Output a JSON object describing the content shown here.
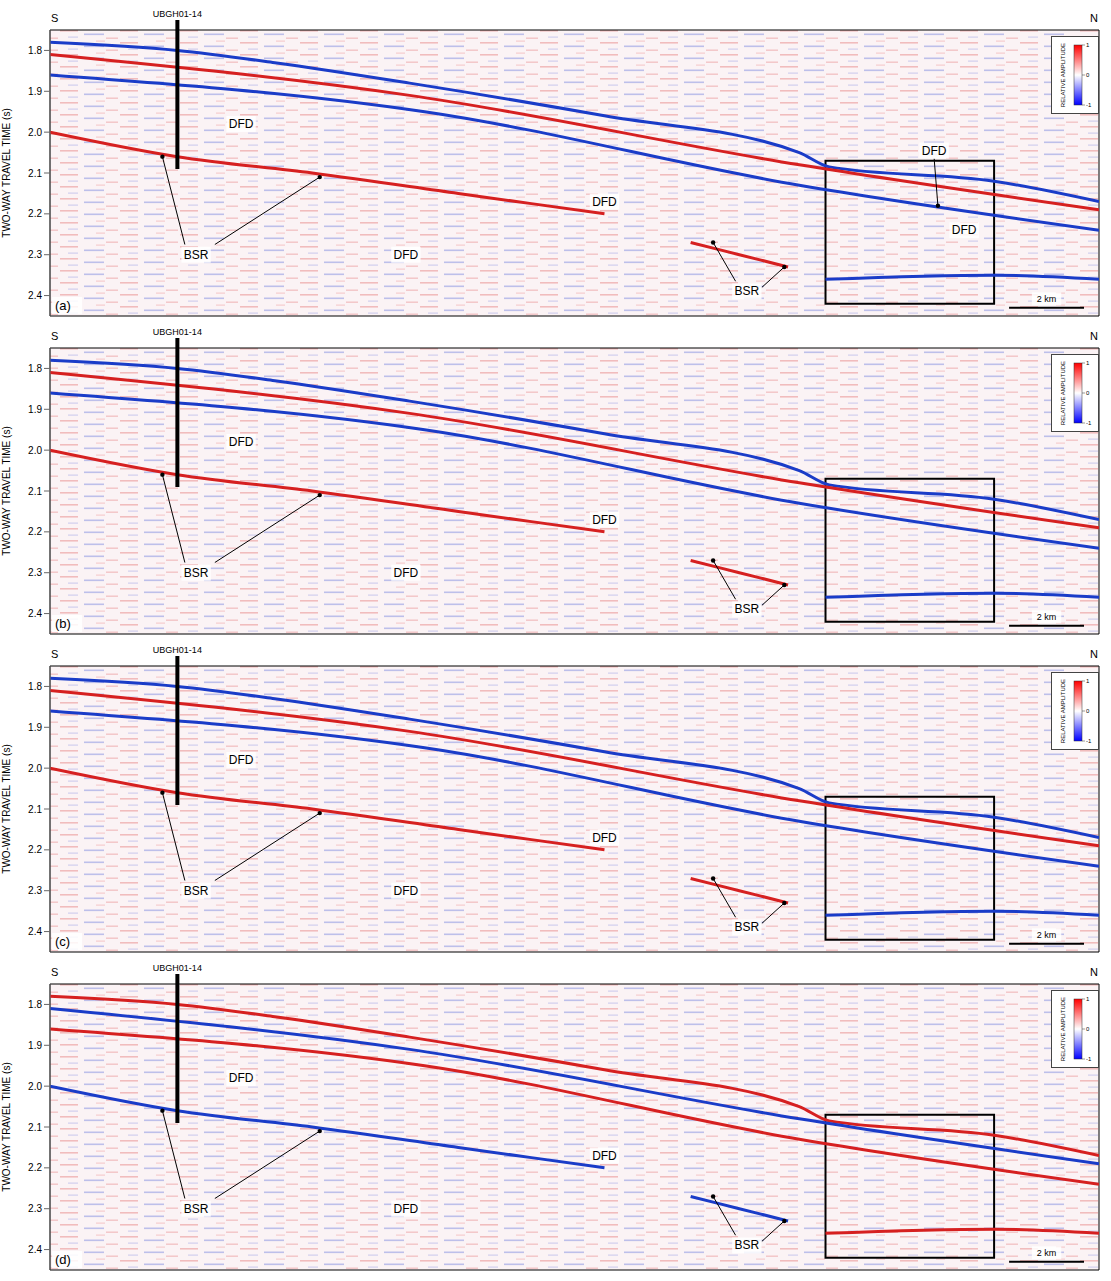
{
  "chart_data": [
    {
      "type": "line",
      "label": "(a)",
      "left_label": "S",
      "right_label": "N",
      "ylabel": "TWO-WAY TRAVEL TIME (s)",
      "xlim": [
        0,
        28
      ],
      "ylim": [
        1.75,
        2.45
      ],
      "yticks": [
        1.8,
        1.9,
        {
          "value": 2,
          "label": "2.0"
        },
        2.1,
        2.2,
        2.3,
        2.4
      ],
      "tick_labels": "y",
      "series": [
        {
          "color": "#1a3cc8",
          "x": [
            0,
            3.4,
            6,
            9.6,
            14.8,
            20,
            20.8,
            25.2,
            28
          ],
          "values": [
            1.78,
            1.8,
            1.83,
            1.88,
            1.96,
            2.05,
            2.085,
            2.12,
            2.17
          ]
        },
        {
          "color": "#d62020",
          "x": [
            0,
            9.6,
            20,
            28
          ],
          "values": [
            1.81,
            1.91,
            2.08,
            2.19
          ]
        },
        {
          "color": "#1a3cc8",
          "x": [
            0,
            10,
            20,
            28
          ],
          "values": [
            1.86,
            1.95,
            2.13,
            2.24
          ]
        },
        {
          "color": "#d62020",
          "x": [
            0,
            3.4,
            7,
            10.9,
            14.8
          ],
          "values": [
            2.0,
            2.06,
            2.1,
            2.15,
            2.2
          ]
        },
        {
          "color": "#d62020",
          "x": [
            17.1,
            18.4,
            19.7
          ],
          "values": [
            2.27,
            2.3,
            2.33
          ]
        },
        {
          "color": "#1a3cc8",
          "x": [
            20.7,
            25.2,
            28
          ],
          "values": [
            2.36,
            2.35,
            2.36
          ]
        }
      ],
      "well": {
        "label": "UBGH01-14",
        "x": 3.4,
        "y": [
          1.75,
          2.09
        ]
      },
      "annotations": [
        {
          "text": "DFD",
          "x": 5.1,
          "y": 1.98
        },
        {
          "text": "DFD",
          "x": 14.8,
          "y": 2.17
        },
        {
          "text": "DFD",
          "x": 9.5,
          "y": 2.3
        },
        {
          "text": "DFD",
          "x": 23.6,
          "y": 2.045
        },
        {
          "text": "DFD",
          "x": 24.4,
          "y": 2.24
        },
        {
          "text": "BSR",
          "x": 3.9,
          "y": 2.3
        },
        {
          "text": "BSR",
          "x": 18.6,
          "y": 2.39
        }
      ],
      "arrows": [
        {
          "from": [
            3.6,
            2.275
          ],
          "to": [
            3.0,
            2.06
          ]
        },
        {
          "from": [
            4.4,
            2.275
          ],
          "to": [
            7.2,
            2.11
          ]
        },
        {
          "from": [
            18.3,
            2.365
          ],
          "to": [
            17.7,
            2.27
          ]
        },
        {
          "from": [
            19.0,
            2.38
          ],
          "to": [
            19.6,
            2.33
          ]
        },
        {
          "from": [
            23.6,
            2.065
          ],
          "to": [
            23.7,
            2.18
          ]
        }
      ],
      "box": {
        "x": [
          20.7,
          25.2
        ],
        "y": [
          2.07,
          2.42
        ]
      },
      "scale_bar": {
        "label": "2 km",
        "length": 2,
        "x": 25.6,
        "y": 2.43
      },
      "colorbar": {
        "label": "RELATIVE AMPLITUDE",
        "range": [
          -1,
          1
        ],
        "ticks": [
          1,
          0,
          -1
        ],
        "colors": [
          "#0000ff",
          "#ffffff",
          "#ff0000"
        ]
      }
    },
    {
      "type": "line",
      "label": "(b)",
      "left_label": "S",
      "right_label": "N",
      "ylabel": "TWO-WAY TRAVEL TIME (s)",
      "xlim": [
        0,
        28
      ],
      "ylim": [
        1.75,
        2.45
      ],
      "yticks": [
        1.8,
        1.9,
        {
          "value": 2,
          "label": "2.0"
        },
        2.1,
        2.2,
        2.3,
        2.4
      ],
      "tick_labels": "y",
      "series": [
        {
          "color": "#1a3cc8",
          "x": [
            0,
            3.4,
            6,
            9.6,
            14.8,
            20,
            20.8,
            25.2,
            28
          ],
          "values": [
            1.78,
            1.8,
            1.83,
            1.88,
            1.96,
            2.05,
            2.085,
            2.12,
            2.17
          ]
        },
        {
          "color": "#d62020",
          "x": [
            0,
            9.6,
            20,
            28
          ],
          "values": [
            1.81,
            1.91,
            2.08,
            2.19
          ]
        },
        {
          "color": "#1a3cc8",
          "x": [
            0,
            10,
            20,
            28
          ],
          "values": [
            1.86,
            1.95,
            2.13,
            2.24
          ]
        },
        {
          "color": "#d62020",
          "x": [
            0,
            3.4,
            7,
            10.9,
            14.8
          ],
          "values": [
            2.0,
            2.06,
            2.1,
            2.15,
            2.2
          ]
        },
        {
          "color": "#d62020",
          "x": [
            17.1,
            18.4,
            19.7
          ],
          "values": [
            2.27,
            2.3,
            2.33
          ]
        },
        {
          "color": "#1a3cc8",
          "x": [
            20.7,
            25.2,
            28
          ],
          "values": [
            2.36,
            2.35,
            2.36
          ]
        }
      ],
      "well": {
        "label": "UBGH01-14",
        "x": 3.4,
        "y": [
          1.75,
          2.09
        ]
      },
      "annotations": [
        {
          "text": "DFD",
          "x": 5.1,
          "y": 1.98
        },
        {
          "text": "DFD",
          "x": 14.8,
          "y": 2.17
        },
        {
          "text": "DFD",
          "x": 9.5,
          "y": 2.3
        },
        {
          "text": "BSR",
          "x": 3.9,
          "y": 2.3
        },
        {
          "text": "BSR",
          "x": 18.6,
          "y": 2.39
        }
      ],
      "arrows": [
        {
          "from": [
            3.6,
            2.275
          ],
          "to": [
            3.0,
            2.06
          ]
        },
        {
          "from": [
            4.4,
            2.275
          ],
          "to": [
            7.2,
            2.11
          ]
        },
        {
          "from": [
            18.3,
            2.365
          ],
          "to": [
            17.7,
            2.27
          ]
        },
        {
          "from": [
            19.0,
            2.38
          ],
          "to": [
            19.6,
            2.33
          ]
        }
      ],
      "box": {
        "x": [
          20.7,
          25.2
        ],
        "y": [
          2.07,
          2.42
        ]
      },
      "scale_bar": {
        "label": "2 km",
        "length": 2,
        "x": 25.6,
        "y": 2.43
      },
      "colorbar": {
        "label": "RELATIVE AMPLITUDE",
        "range": [
          -1,
          1
        ],
        "ticks": [
          1,
          0,
          -1
        ],
        "colors": [
          "#0000ff",
          "#ffffff",
          "#ff0000"
        ]
      }
    },
    {
      "type": "line",
      "label": "(c)",
      "left_label": "S",
      "right_label": "N",
      "ylabel": "TWO-WAY TRAVEL TIME (s)",
      "xlim": [
        0,
        28
      ],
      "ylim": [
        1.75,
        2.45
      ],
      "yticks": [
        1.8,
        1.9,
        {
          "value": 2,
          "label": "2.0"
        },
        2.1,
        2.2,
        2.3,
        2.4
      ],
      "tick_labels": "y",
      "series": [
        {
          "color": "#1a3cc8",
          "x": [
            0,
            3.4,
            6,
            9.6,
            14.8,
            20,
            20.8,
            25.2,
            28
          ],
          "values": [
            1.78,
            1.8,
            1.83,
            1.88,
            1.96,
            2.05,
            2.085,
            2.12,
            2.17
          ]
        },
        {
          "color": "#d62020",
          "x": [
            0,
            9.6,
            20,
            28
          ],
          "values": [
            1.81,
            1.91,
            2.08,
            2.19
          ]
        },
        {
          "color": "#1a3cc8",
          "x": [
            0,
            10,
            20,
            28
          ],
          "values": [
            1.86,
            1.95,
            2.13,
            2.24
          ]
        },
        {
          "color": "#d62020",
          "x": [
            0,
            3.4,
            7,
            10.9,
            14.8
          ],
          "values": [
            2.0,
            2.06,
            2.1,
            2.15,
            2.2
          ]
        },
        {
          "color": "#d62020",
          "x": [
            17.1,
            18.4,
            19.7
          ],
          "values": [
            2.27,
            2.3,
            2.33
          ]
        },
        {
          "color": "#1a3cc8",
          "x": [
            20.7,
            25.2,
            28
          ],
          "values": [
            2.36,
            2.35,
            2.36
          ]
        }
      ],
      "well": {
        "label": "UBGH01-14",
        "x": 3.4,
        "y": [
          1.75,
          2.09
        ]
      },
      "annotations": [
        {
          "text": "DFD",
          "x": 5.1,
          "y": 1.98
        },
        {
          "text": "DFD",
          "x": 14.8,
          "y": 2.17
        },
        {
          "text": "DFD",
          "x": 9.5,
          "y": 2.3
        },
        {
          "text": "BSR",
          "x": 3.9,
          "y": 2.3
        },
        {
          "text": "BSR",
          "x": 18.6,
          "y": 2.39
        }
      ],
      "arrows": [
        {
          "from": [
            3.6,
            2.275
          ],
          "to": [
            3.0,
            2.06
          ]
        },
        {
          "from": [
            4.4,
            2.275
          ],
          "to": [
            7.2,
            2.11
          ]
        },
        {
          "from": [
            18.3,
            2.365
          ],
          "to": [
            17.7,
            2.27
          ]
        },
        {
          "from": [
            19.0,
            2.38
          ],
          "to": [
            19.6,
            2.33
          ]
        }
      ],
      "box": {
        "x": [
          20.7,
          25.2
        ],
        "y": [
          2.07,
          2.42
        ]
      },
      "scale_bar": {
        "label": "2 km",
        "length": 2,
        "x": 25.6,
        "y": 2.43
      },
      "colorbar": {
        "label": "RELATIVE AMPLITUDE",
        "range": [
          -1,
          1
        ],
        "ticks": [
          1,
          0,
          -1
        ],
        "colors": [
          "#0000ff",
          "#ffffff",
          "#ff0000"
        ]
      }
    },
    {
      "type": "line",
      "label": "(d)",
      "left_label": "S",
      "right_label": "N",
      "ylabel": "TWO-WAY TRAVEL TIME (s)",
      "xlim": [
        0,
        28
      ],
      "ylim": [
        1.75,
        2.45
      ],
      "yticks": [
        1.8,
        1.9,
        {
          "value": 2,
          "label": "2.0"
        },
        2.1,
        2.2,
        2.3,
        2.4
      ],
      "tick_labels": "y",
      "series": [
        {
          "color": "#d62020",
          "x": [
            0,
            3.4,
            6,
            9.6,
            14.8,
            20,
            20.8,
            25.2,
            28
          ],
          "values": [
            1.78,
            1.8,
            1.83,
            1.88,
            1.96,
            2.05,
            2.085,
            2.12,
            2.17
          ]
        },
        {
          "color": "#1a3cc8",
          "x": [
            0,
            9.6,
            20,
            28
          ],
          "values": [
            1.81,
            1.91,
            2.08,
            2.19
          ]
        },
        {
          "color": "#d62020",
          "x": [
            0,
            10,
            20,
            28
          ],
          "values": [
            1.86,
            1.95,
            2.13,
            2.24
          ]
        },
        {
          "color": "#1a3cc8",
          "x": [
            0,
            3.4,
            7,
            10.9,
            14.8
          ],
          "values": [
            2.0,
            2.06,
            2.1,
            2.15,
            2.2
          ]
        },
        {
          "color": "#1a3cc8",
          "x": [
            17.1,
            18.4,
            19.7
          ],
          "values": [
            2.27,
            2.3,
            2.33
          ]
        },
        {
          "color": "#d62020",
          "x": [
            20.7,
            25.2,
            28
          ],
          "values": [
            2.36,
            2.35,
            2.36
          ]
        }
      ],
      "well": {
        "label": "UBGH01-14",
        "x": 3.4,
        "y": [
          1.75,
          2.09
        ]
      },
      "annotations": [
        {
          "text": "DFD",
          "x": 5.1,
          "y": 1.98
        },
        {
          "text": "DFD",
          "x": 14.8,
          "y": 2.17
        },
        {
          "text": "DFD",
          "x": 9.5,
          "y": 2.3
        },
        {
          "text": "BSR",
          "x": 3.9,
          "y": 2.3
        },
        {
          "text": "BSR",
          "x": 18.6,
          "y": 2.39
        }
      ],
      "arrows": [
        {
          "from": [
            3.6,
            2.275
          ],
          "to": [
            3.0,
            2.06
          ]
        },
        {
          "from": [
            4.4,
            2.275
          ],
          "to": [
            7.2,
            2.11
          ]
        },
        {
          "from": [
            18.3,
            2.365
          ],
          "to": [
            17.7,
            2.27
          ]
        },
        {
          "from": [
            19.0,
            2.38
          ],
          "to": [
            19.6,
            2.33
          ]
        }
      ],
      "box": {
        "x": [
          20.7,
          25.2
        ],
        "y": [
          2.07,
          2.42
        ]
      },
      "scale_bar": {
        "label": "2 km",
        "length": 2,
        "x": 25.6,
        "y": 2.43
      },
      "colorbar": {
        "label": "RELATIVE AMPLITUDE",
        "range": [
          -1,
          1
        ],
        "ticks": [
          1,
          0,
          -1
        ],
        "colors": [
          "#0000ff",
          "#ffffff",
          "#ff0000"
        ]
      }
    }
  ]
}
